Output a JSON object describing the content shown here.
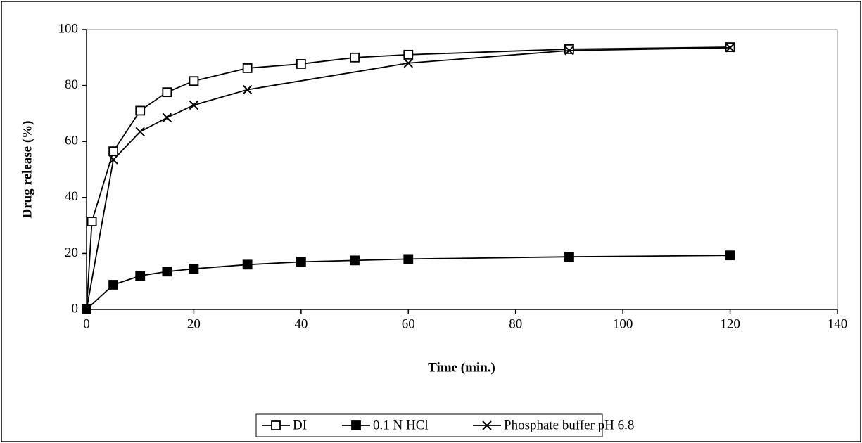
{
  "chart_data": {
    "type": "line",
    "xlabel": "Time (min.)",
    "ylabel": "Drug release (%)",
    "xlim": [
      0,
      140
    ],
    "xticks": [
      0,
      20,
      40,
      60,
      80,
      100,
      120,
      140
    ],
    "ylim": [
      0,
      100
    ],
    "yticks": [
      0,
      20,
      40,
      60,
      80,
      100
    ],
    "grid": false,
    "legend": "bottom",
    "series": [
      {
        "name": "DI",
        "color": "#000000",
        "marker": "square-open",
        "x": [
          0,
          1,
          5,
          10,
          15,
          20,
          30,
          40,
          50,
          60,
          90,
          120
        ],
        "values": [
          0,
          31.4,
          56.5,
          71,
          77.6,
          81.6,
          86.2,
          87.7,
          90,
          91,
          93,
          93.7
        ]
      },
      {
        "name": "0.1 N HCl",
        "color": "#000000",
        "marker": "square-filled",
        "x": [
          0,
          5,
          10,
          15,
          20,
          30,
          40,
          50,
          60,
          90,
          120
        ],
        "values": [
          0,
          8.8,
          12,
          13.5,
          14.5,
          16,
          17,
          17.5,
          18,
          18.8,
          19.3
        ]
      },
      {
        "name": "Phosphate buffer pH 6.8",
        "color": "#000000",
        "marker": "x",
        "x": [
          0,
          5,
          10,
          15,
          20,
          30,
          60,
          90,
          120
        ],
        "values": [
          0,
          53.5,
          63.5,
          68.5,
          73,
          78.5,
          88,
          92.5,
          93.5
        ]
      }
    ]
  }
}
